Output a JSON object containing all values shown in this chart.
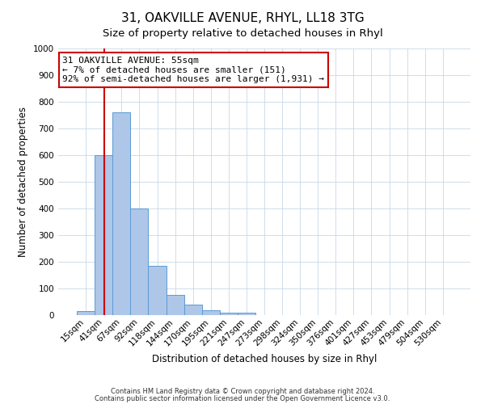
{
  "title": "31, OAKVILLE AVENUE, RHYL, LL18 3TG",
  "subtitle": "Size of property relative to detached houses in Rhyl",
  "xlabel": "Distribution of detached houses by size in Rhyl",
  "ylabel": "Number of detached properties",
  "bar_labels": [
    "15sqm",
    "41sqm",
    "67sqm",
    "92sqm",
    "118sqm",
    "144sqm",
    "170sqm",
    "195sqm",
    "221sqm",
    "247sqm",
    "273sqm",
    "298sqm",
    "324sqm",
    "350sqm",
    "376sqm",
    "401sqm",
    "427sqm",
    "453sqm",
    "479sqm",
    "504sqm",
    "530sqm"
  ],
  "bar_heights": [
    15,
    600,
    760,
    400,
    185,
    75,
    40,
    18,
    10,
    10,
    0,
    0,
    0,
    0,
    0,
    0,
    0,
    0,
    0,
    0,
    0
  ],
  "bar_color": "#aec6e8",
  "bar_edge_color": "#5b9bd5",
  "annotation_text": "31 OAKVILLE AVENUE: 55sqm\n← 7% of detached houses are smaller (151)\n92% of semi-detached houses are larger (1,931) →",
  "annotation_box_color": "#ffffff",
  "annotation_box_edge_color": "#cc0000",
  "red_line_color": "#cc0000",
  "ylim": [
    0,
    1000
  ],
  "yticks": [
    0,
    100,
    200,
    300,
    400,
    500,
    600,
    700,
    800,
    900,
    1000
  ],
  "title_fontsize": 11,
  "subtitle_fontsize": 9.5,
  "axis_fontsize": 8.5,
  "tick_fontsize": 7.5,
  "annotation_fontsize": 8,
  "footnote1": "Contains HM Land Registry data © Crown copyright and database right 2024.",
  "footnote2": "Contains public sector information licensed under the Open Government Licence v3.0.",
  "footnote_fontsize": 6,
  "background_color": "#ffffff",
  "grid_color": "#c8d8e8"
}
